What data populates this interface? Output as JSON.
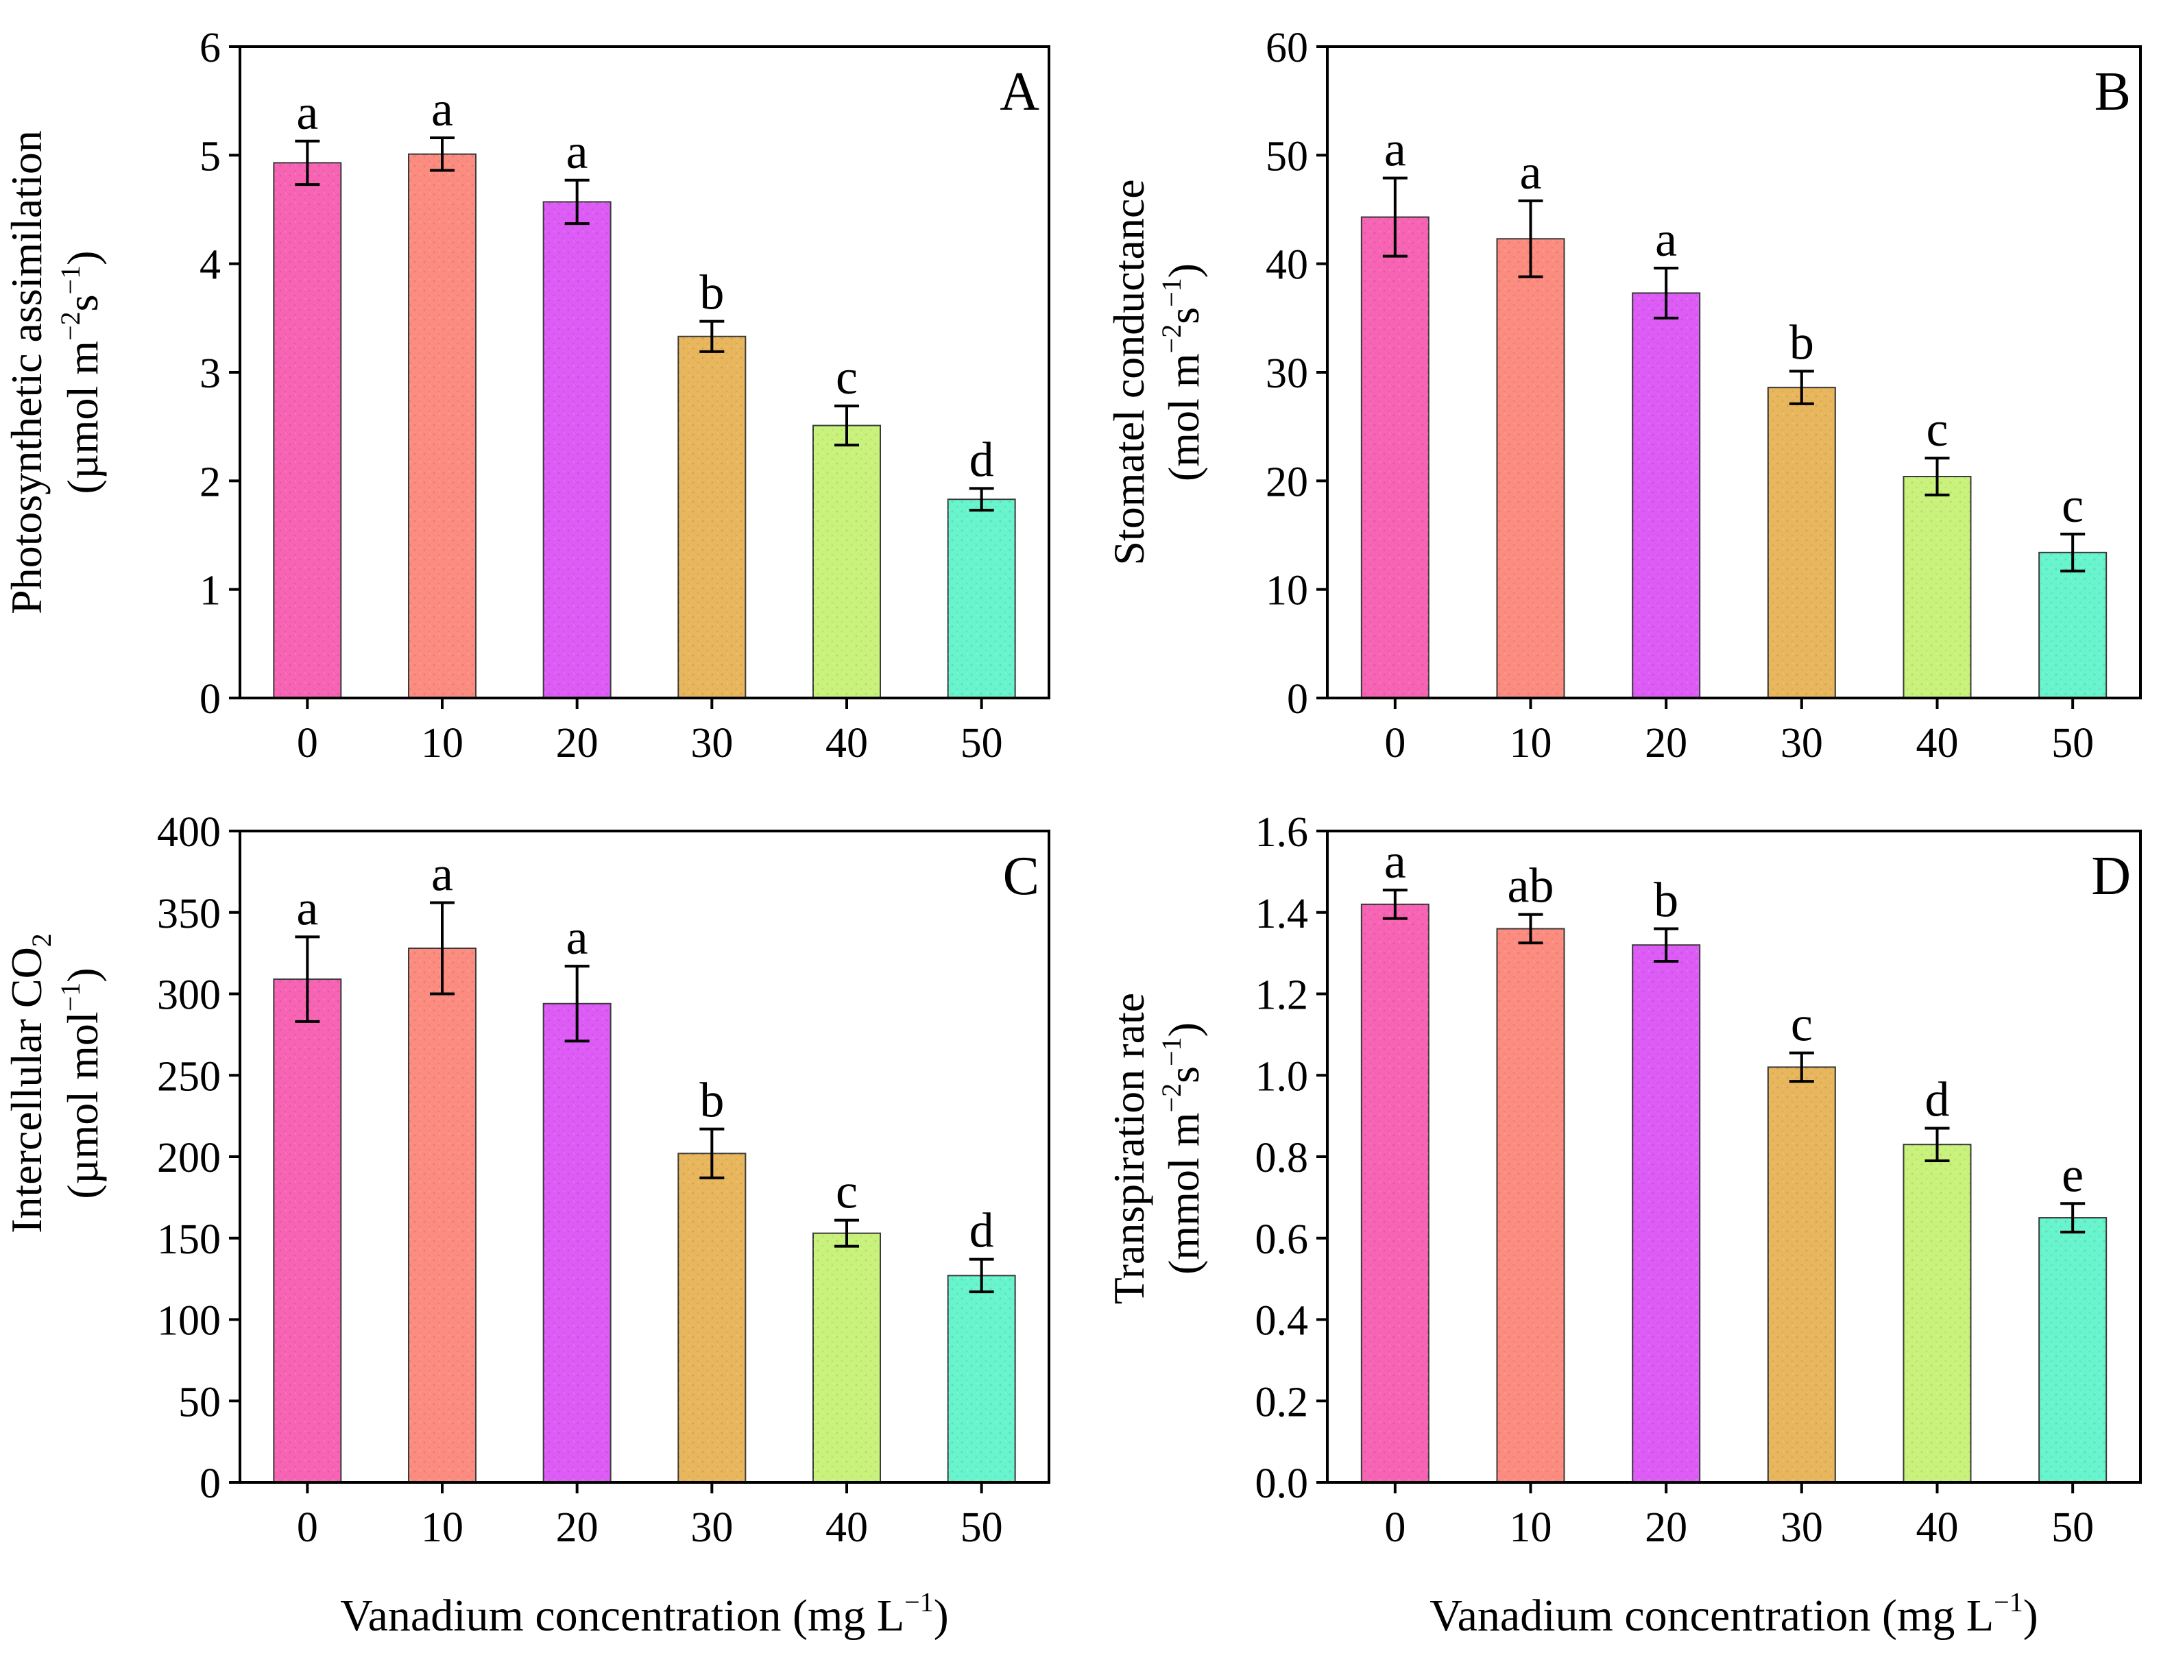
{
  "figure": {
    "xlabel_main": "Vanadium concentration (mg L",
    "xlabel_sup": "−1",
    "xlabel_close": ")"
  },
  "chart_data": [
    {
      "type": "bar",
      "panel": "A",
      "categories": [
        "0",
        "10",
        "20",
        "30",
        "40",
        "50"
      ],
      "values": [
        4.93,
        5.01,
        4.57,
        3.33,
        2.51,
        1.83
      ],
      "errors": [
        0.2,
        0.15,
        0.2,
        0.14,
        0.18,
        0.1
      ],
      "letters": [
        "a",
        "a",
        "a",
        "b",
        "c",
        "d"
      ],
      "colors": [
        "#f764b4",
        "#fc8c80",
        "#dc5cf5",
        "#e8b65c",
        "#c8f27c",
        "#68f4cc"
      ],
      "ylim": [
        0,
        6
      ],
      "yticks": [
        "0",
        "1",
        "2",
        "3",
        "4",
        "5",
        "6"
      ],
      "ylabel_line1": "Photosynthetic assimilation",
      "ylabel_line2": {
        "pre": "(µmol m",
        "sup1": "−2",
        "mid": "s",
        "sup2": "−1",
        "post": ")"
      },
      "xlabel": ""
    },
    {
      "type": "bar",
      "panel": "B",
      "categories": [
        "0",
        "10",
        "20",
        "30",
        "40",
        "50"
      ],
      "values": [
        44.3,
        42.3,
        37.3,
        28.6,
        20.4,
        13.4
      ],
      "errors": [
        3.6,
        3.5,
        2.3,
        1.5,
        1.7,
        1.7
      ],
      "letters": [
        "a",
        "a",
        "a",
        "b",
        "c",
        "c"
      ],
      "colors": [
        "#f764b4",
        "#fc8c80",
        "#dc5cf5",
        "#e8b65c",
        "#c8f27c",
        "#68f4cc"
      ],
      "ylim": [
        0,
        60
      ],
      "yticks": [
        "0",
        "10",
        "20",
        "30",
        "40",
        "50",
        "60"
      ],
      "ylabel_line1": "Stomatel conductance",
      "ylabel_line2": {
        "pre": "(mol m",
        "sup1": "−2",
        "mid": "s",
        "sup2": "−1",
        "post": ")"
      },
      "xlabel": ""
    },
    {
      "type": "bar",
      "panel": "C",
      "categories": [
        "0",
        "10",
        "20",
        "30",
        "40",
        "50"
      ],
      "values": [
        309,
        328,
        294,
        202,
        153,
        127
      ],
      "errors": [
        26,
        28,
        23,
        15,
        8,
        10
      ],
      "letters": [
        "a",
        "a",
        "a",
        "b",
        "c",
        "d"
      ],
      "colors": [
        "#f764b4",
        "#fc8c80",
        "#dc5cf5",
        "#e8b65c",
        "#c8f27c",
        "#68f4cc"
      ],
      "ylim": [
        0,
        400
      ],
      "yticks": [
        "0",
        "50",
        "100",
        "150",
        "200",
        "250",
        "300",
        "350",
        "400"
      ],
      "ylabel_line1": {
        "pre": "Intercellular CO",
        "sub": "2"
      },
      "ylabel_line2": {
        "pre": "(µmol mol",
        "sup1": "−1",
        "post": ")"
      },
      "xlabel": "Vanadium concentration (mg L−1)"
    },
    {
      "type": "bar",
      "panel": "D",
      "categories": [
        "0",
        "10",
        "20",
        "30",
        "40",
        "50"
      ],
      "values": [
        1.42,
        1.36,
        1.32,
        1.02,
        0.83,
        0.65
      ],
      "errors": [
        0.035,
        0.035,
        0.04,
        0.035,
        0.04,
        0.035
      ],
      "letters": [
        "a",
        "ab",
        "b",
        "c",
        "d",
        "e"
      ],
      "colors": [
        "#f764b4",
        "#fc8c80",
        "#dc5cf5",
        "#e8b65c",
        "#c8f27c",
        "#68f4cc"
      ],
      "ylim": [
        0,
        1.6
      ],
      "yticks": [
        "0.0",
        "0.2",
        "0.4",
        "0.6",
        "0.8",
        "1.0",
        "1.2",
        "1.4",
        "1.6"
      ],
      "ylabel_line1": "Transpiration rate",
      "ylabel_line2": {
        "pre": "(mmol m",
        "sup1": "−2",
        "mid": "s",
        "sup2": "−1",
        "post": ")"
      },
      "xlabel": "Vanadium concentration (mg L−1)"
    }
  ]
}
